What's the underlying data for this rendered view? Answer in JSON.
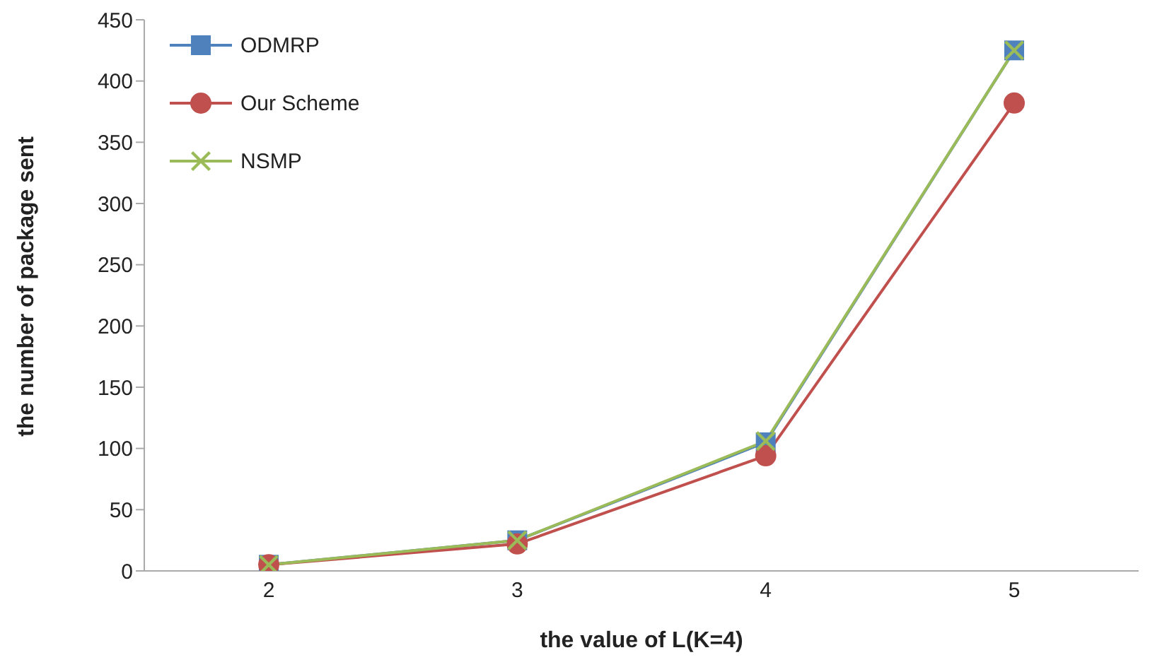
{
  "chart_data": {
    "type": "line",
    "xlabel": "the value of L(K=4)",
    "ylabel": "the number of package sent",
    "categories": [
      "2",
      "3",
      "4",
      "5"
    ],
    "series": [
      {
        "name": "ODMRP",
        "color": "#4f81bd",
        "marker": "square",
        "values": [
          5,
          25,
          105,
          425
        ]
      },
      {
        "name": "Our Scheme",
        "color": "#c0504d",
        "marker": "circle",
        "values": [
          5,
          22,
          94,
          382
        ]
      },
      {
        "name": "NSMP",
        "color": "#9bbb59",
        "marker": "cross",
        "values": [
          5,
          25,
          106,
          425
        ]
      }
    ],
    "ylim": [
      0,
      450
    ],
    "yticks": [
      0,
      50,
      100,
      150,
      200,
      250,
      300,
      350,
      400,
      450
    ],
    "grid": false,
    "legend": "top left",
    "line_style": "solid"
  }
}
